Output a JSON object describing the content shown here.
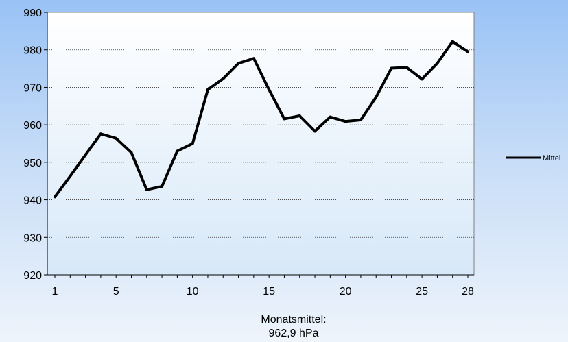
{
  "chart_data": {
    "type": "line",
    "x": [
      1,
      2,
      3,
      4,
      5,
      6,
      7,
      8,
      9,
      10,
      11,
      12,
      13,
      14,
      15,
      16,
      17,
      18,
      19,
      20,
      21,
      22,
      23,
      24,
      25,
      26,
      27,
      28
    ],
    "series": [
      {
        "name": "Mittel",
        "values": [
          940.8,
          946.3,
          952.0,
          957.6,
          956.4,
          952.6,
          942.7,
          943.6,
          953.0,
          955.0,
          969.4,
          972.3,
          976.4,
          977.7,
          969.4,
          961.6,
          962.4,
          958.3,
          962.1,
          960.9,
          961.3,
          967.4,
          975.1,
          975.3,
          972.2,
          976.4,
          982.2,
          979.5
        ],
        "color": "#000000"
      }
    ],
    "ylim": [
      920,
      990
    ],
    "yticks": [
      920,
      930,
      940,
      950,
      960,
      970,
      980,
      990
    ],
    "xticks": [
      1,
      5,
      10,
      15,
      20,
      25,
      28
    ],
    "xlim": [
      1,
      28
    ],
    "grid": "horizontal dotted",
    "legend": "right",
    "caption_line1": "Monatsmittel:",
    "caption_line2": "962,9 hPa",
    "colors": {
      "plot_background_top": "#ffffff",
      "plot_background_bottom": "#d7e8f8",
      "line": "#000000"
    }
  }
}
